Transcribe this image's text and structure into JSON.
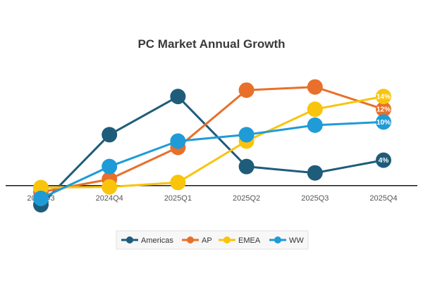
{
  "chart_data": {
    "type": "line",
    "title": "PC Market Annual Growth",
    "xlabel": "",
    "ylabel": "",
    "categories": [
      "2024Q3",
      "2024Q4",
      "2025Q1",
      "2025Q2",
      "2025Q3",
      "2025Q4"
    ],
    "ylim": [
      -4,
      17
    ],
    "grid": false,
    "legend_position": "bottom",
    "series": [
      {
        "name": "Americas",
        "color": "#1f5c7a",
        "values": [
          -3,
          8,
          14,
          3,
          2,
          4
        ],
        "end_label": "4%"
      },
      {
        "name": "AP",
        "color": "#e8702a",
        "values": [
          -1,
          1,
          6,
          15,
          15.5,
          12
        ],
        "end_label": "12%"
      },
      {
        "name": "EMEA",
        "color": "#f9c40c",
        "values": [
          -0.3,
          -0.2,
          0.5,
          7,
          12,
          14
        ],
        "end_label": "14%"
      },
      {
        "name": "WW",
        "color": "#1f9bd7",
        "values": [
          -2,
          3,
          7,
          8,
          9.5,
          10
        ],
        "end_label": "10%"
      }
    ]
  }
}
